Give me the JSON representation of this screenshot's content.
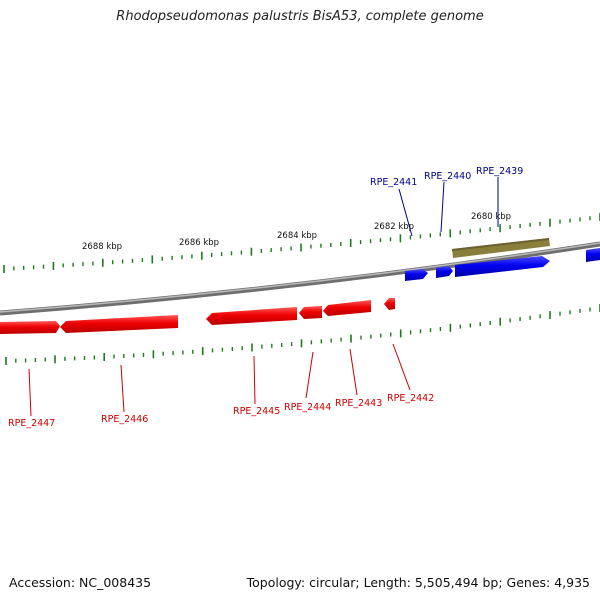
{
  "title": "Rhodopseudomonas palustris BisA53, complete genome",
  "footer": {
    "accession": "Accession: NC_008435",
    "topology": "Topology: circular; Length: 5,505,494 bp; Genes: 4,935"
  },
  "colors": {
    "forward_gene": "#0000ee",
    "reverse_gene": "#ee0000",
    "rna_feature": "#b8b07a",
    "backbone": "#8a8a8a",
    "tick": "#1f7a1f",
    "forward_label": "#00008b",
    "reverse_label": "#cc0000"
  },
  "scale_labels": [
    {
      "text": "2688 kbp",
      "kbp": 2688
    },
    {
      "text": "2686 kbp",
      "kbp": 2686
    },
    {
      "text": "2684 kbp",
      "kbp": 2684
    },
    {
      "text": "2682 kbp",
      "kbp": 2682
    },
    {
      "text": "2680 kbp",
      "kbp": 2680
    }
  ],
  "forward_genes": [
    {
      "name": "RPE_2441"
    },
    {
      "name": "RPE_2440"
    },
    {
      "name": "RPE_2439"
    }
  ],
  "reverse_genes": [
    {
      "name": "RPE_2447"
    },
    {
      "name": "RPE_2446"
    },
    {
      "name": "RPE_2445"
    },
    {
      "name": "RPE_2444"
    },
    {
      "name": "RPE_2443"
    },
    {
      "name": "RPE_2442"
    }
  ]
}
